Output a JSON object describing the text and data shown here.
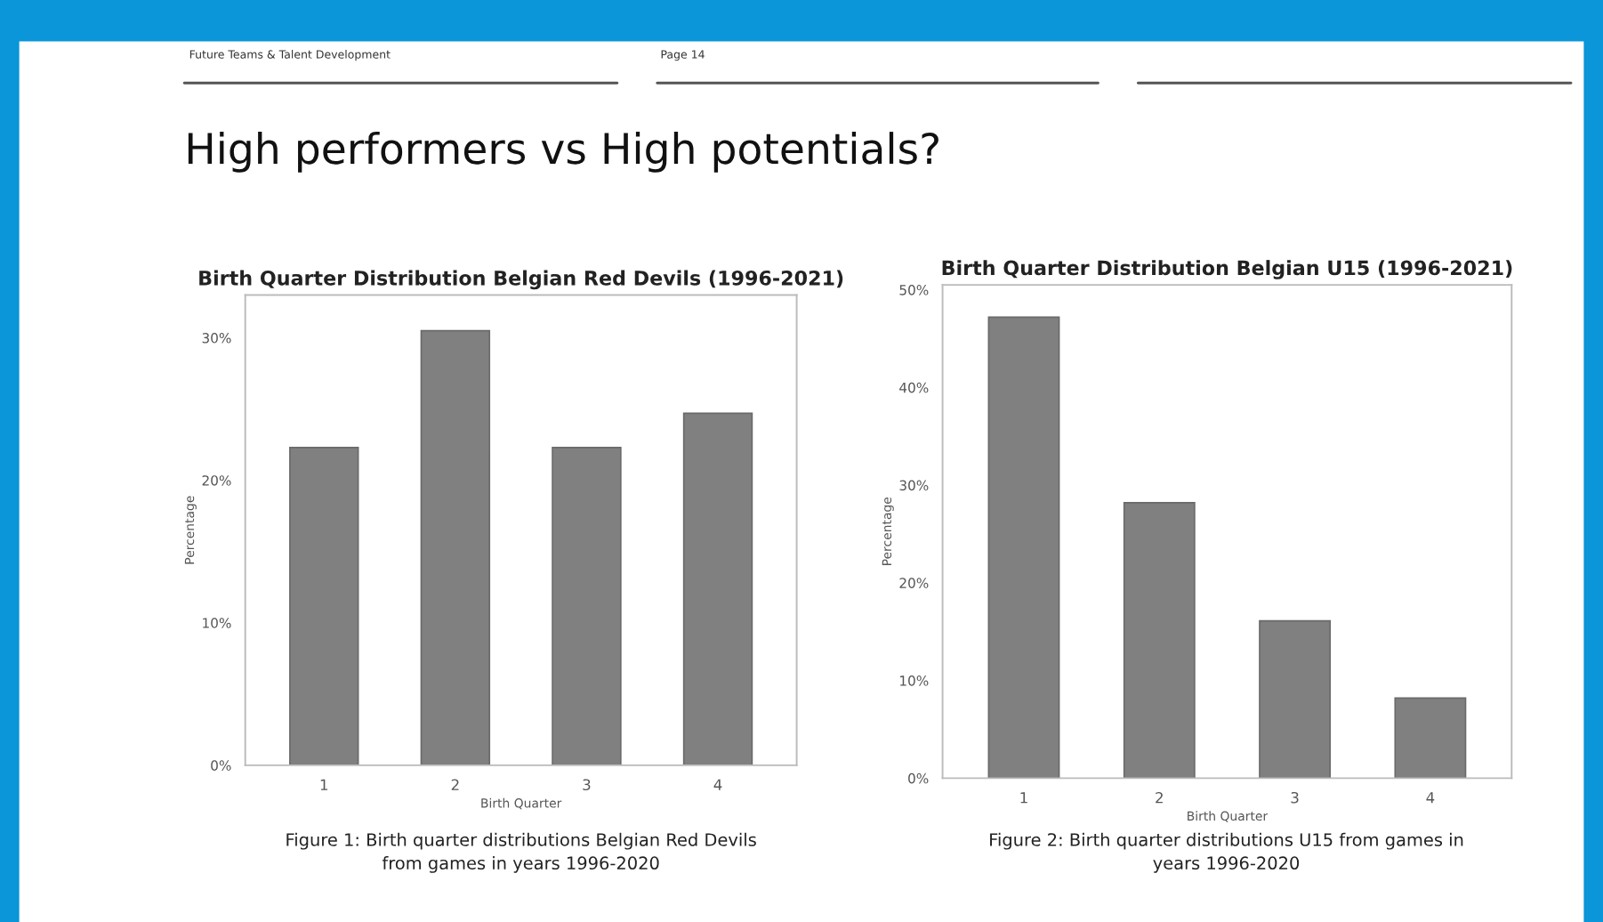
{
  "chart_data": [
    {
      "type": "bar",
      "title": "Birth Quarter Distribution Belgian Red Devils (1996-2021)",
      "xlabel": "Birth Quarter",
      "ylabel": "Percentage",
      "categories": [
        "1",
        "2",
        "3",
        "4"
      ],
      "values": [
        22.3,
        30.5,
        22.3,
        24.7
      ],
      "color": "#808080",
      "ylim": [
        0,
        33
      ],
      "yticks": [
        {
          "value": 0,
          "label": "0%"
        },
        {
          "value": 10,
          "label": "10%"
        },
        {
          "value": 20,
          "label": "20%"
        },
        {
          "value": 30,
          "label": "30%"
        }
      ],
      "annotations": [
        "Future Teams & Talent Development",
        "Page 14",
        "High performers vs High potentials?",
        "Figure 1: Birth quarter distributions Belgian Red Devils from games in years 1996-2020"
      ]
    },
    {
      "type": "bar",
      "title": "Birth Quarter Distribution Belgian U15 (1996-2021)",
      "xlabel": "Birth Quarter",
      "ylabel": "Percentage",
      "categories": [
        "1",
        "2",
        "3",
        "4"
      ],
      "values": [
        47.2,
        28.2,
        16.1,
        8.2
      ],
      "color": "#808080",
      "ylim": [
        0,
        50.5
      ],
      "yticks": [
        {
          "value": 0,
          "label": "0%"
        },
        {
          "value": 10,
          "label": "10%"
        },
        {
          "value": 20,
          "label": "20%"
        },
        {
          "value": 30,
          "label": "30%"
        },
        {
          "value": 40,
          "label": "40%"
        },
        {
          "value": 50,
          "label": "50%"
        }
      ],
      "annotations": [
        "Figure 2: Birth quarter distributions U15 from games in years 1996-2020"
      ]
    }
  ]
}
